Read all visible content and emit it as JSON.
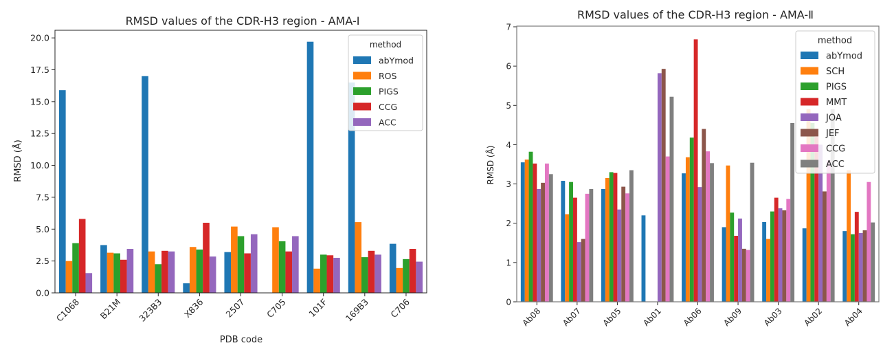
{
  "chart_data": [
    {
      "type": "bar",
      "title": "RMSD values of the CDR-H3 region - AMA-I",
      "xlabel": "PDB code",
      "ylabel": "RMSD (Å)",
      "ylim": [
        0,
        20.6
      ],
      "yticks": [
        0.0,
        2.5,
        5.0,
        7.5,
        10.0,
        12.5,
        15.0,
        17.5,
        20.0
      ],
      "ytick_labels": [
        "0.0",
        "2.5",
        "5.0",
        "7.5",
        "10.0",
        "12.5",
        "15.0",
        "17.5",
        "20.0"
      ],
      "grid": false,
      "legend": {
        "title": "method",
        "placement": "top-right"
      },
      "categories": [
        "C1068",
        "B21M",
        "323B3",
        "X836",
        "2507",
        "C705",
        "101F",
        "169B3",
        "C706"
      ],
      "series": [
        {
          "name": "abYmod",
          "color": "#1f77b4",
          "values": [
            15.9,
            3.75,
            17.0,
            0.75,
            3.2,
            null,
            19.7,
            16.5,
            3.85
          ]
        },
        {
          "name": "ROS",
          "color": "#ff7f0e",
          "values": [
            2.5,
            3.15,
            3.25,
            3.6,
            5.2,
            5.15,
            1.9,
            5.55,
            1.95
          ]
        },
        {
          "name": "PIGS",
          "color": "#2ca02c",
          "values": [
            3.9,
            3.1,
            2.25,
            3.4,
            4.45,
            4.05,
            3.0,
            2.8,
            2.65
          ]
        },
        {
          "name": "CCG",
          "color": "#d62728",
          "values": [
            5.8,
            2.6,
            3.3,
            5.5,
            3.1,
            3.25,
            2.95,
            3.3,
            3.45
          ]
        },
        {
          "name": "ACC",
          "color": "#9467bd",
          "values": [
            1.55,
            3.45,
            3.25,
            2.85,
            4.6,
            4.45,
            2.75,
            3.0,
            2.45
          ]
        }
      ]
    },
    {
      "type": "bar",
      "title": "RMSD values of the CDR-H3 region - AMA-Ⅱ",
      "xlabel": "",
      "ylabel": "RMSD (Å)",
      "ylim": [
        0,
        7
      ],
      "yticks": [
        0,
        1,
        2,
        3,
        4,
        5,
        6,
        7
      ],
      "ytick_labels": [
        "0",
        "1",
        "2",
        "3",
        "4",
        "5",
        "6",
        "7"
      ],
      "grid": false,
      "legend": {
        "title": "method",
        "placement": "top-right"
      },
      "categories": [
        "Ab08",
        "Ab07",
        "Ab05",
        "Ab01",
        "Ab06",
        "Ab09",
        "Ab03",
        "Ab02",
        "Ab04"
      ],
      "series": [
        {
          "name": "abYmod",
          "color": "#1f77b4",
          "values": [
            3.55,
            3.08,
            2.87,
            2.2,
            3.27,
            1.9,
            2.03,
            1.87,
            1.8
          ]
        },
        {
          "name": "SCH",
          "color": "#ff7f0e",
          "values": [
            3.62,
            2.23,
            3.15,
            null,
            3.68,
            3.47,
            1.6,
            4.9,
            3.35
          ]
        },
        {
          "name": "PIGS",
          "color": "#2ca02c",
          "values": [
            3.82,
            3.05,
            3.3,
            null,
            4.18,
            2.27,
            2.3,
            4.55,
            1.72
          ]
        },
        {
          "name": "MMT",
          "color": "#d62728",
          "values": [
            3.52,
            2.65,
            3.28,
            null,
            6.68,
            1.68,
            2.65,
            4.2,
            2.29
          ]
        },
        {
          "name": "JOA",
          "color": "#9467bd",
          "values": [
            2.87,
            1.52,
            2.35,
            5.82,
            2.92,
            2.12,
            2.38,
            4.0,
            1.75
          ]
        },
        {
          "name": "JEF",
          "color": "#8c564b",
          "values": [
            3.03,
            1.6,
            2.93,
            5.93,
            4.4,
            1.35,
            2.33,
            2.81,
            1.82
          ]
        },
        {
          "name": "CCG",
          "color": "#e377c2",
          "values": [
            3.52,
            2.75,
            2.76,
            3.7,
            3.83,
            1.32,
            2.62,
            3.6,
            3.05
          ]
        },
        {
          "name": "ACC",
          "color": "#7f7f7f",
          "values": [
            3.25,
            2.87,
            3.35,
            5.22,
            3.53,
            3.54,
            4.55,
            4.9,
            2.02
          ]
        }
      ]
    }
  ]
}
